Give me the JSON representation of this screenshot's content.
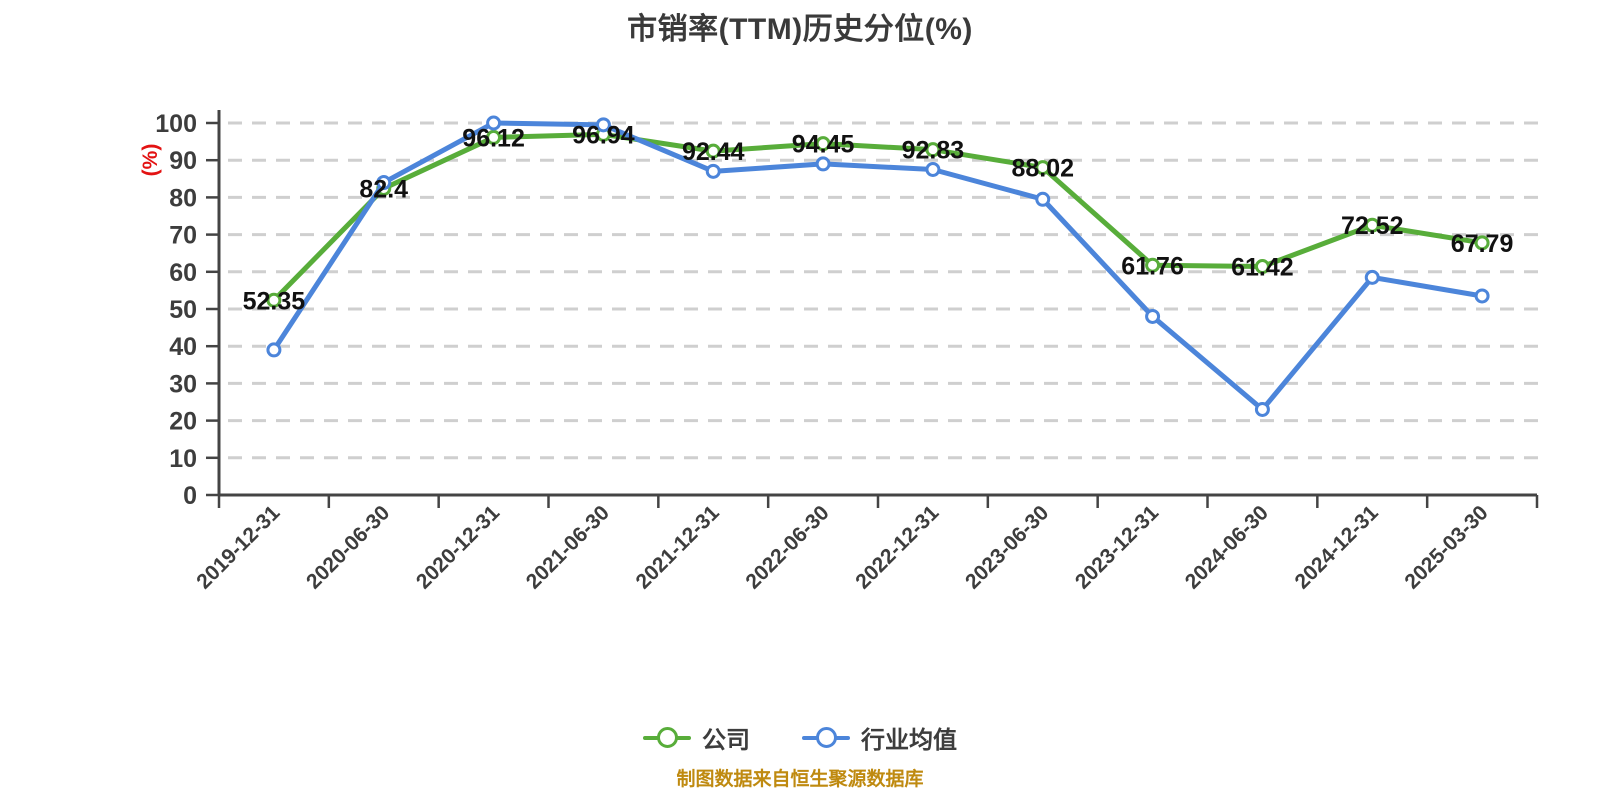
{
  "title": "市销率(TTM)历史分位(%)",
  "footer": "制图数据来自恒生聚源数据库",
  "colors": {
    "company_series": "#58ad3a",
    "industry_series": "#4c85da",
    "axis_line": "#444444",
    "grid_line": "#cfcfcf",
    "tick_text": "#3d3d3d",
    "title_text": "#3a3a3a",
    "data_label_text": "#111111",
    "y_axis_name_text": "#e31212",
    "footer_text": "#bf8a10",
    "marker_fill": "#ffffff"
  },
  "chart_data": {
    "type": "line",
    "title": "市销率(TTM)历史分位(%)",
    "xlabel": "",
    "ylabel": "(%)",
    "ylim": [
      0,
      100
    ],
    "ytick_interval": 10,
    "grid": "horizontal dashed",
    "legend_position": "bottom",
    "categories": [
      "2019-12-31",
      "2020-06-30",
      "2020-12-31",
      "2021-06-30",
      "2021-12-31",
      "2022-06-30",
      "2022-12-31",
      "2023-06-30",
      "2023-12-31",
      "2024-06-30",
      "2024-12-31",
      "2025-03-30"
    ],
    "series": [
      {
        "name": "公司",
        "key": "company",
        "color": "#58ad3a",
        "show_labels": true,
        "values": [
          52.35,
          82.4,
          96.12,
          96.94,
          92.44,
          94.45,
          92.83,
          88.02,
          61.76,
          61.42,
          72.52,
          67.79
        ],
        "labels": [
          "52.35",
          "82.4",
          "96.12",
          "96.94",
          "92.44",
          "94.45",
          "92.83",
          "88.02",
          "61.76",
          "61.42",
          "72.52",
          "67.79"
        ]
      },
      {
        "name": "行业均值",
        "key": "industry-average",
        "color": "#4c85da",
        "show_labels": false,
        "values": [
          39,
          84,
          100,
          99.5,
          87,
          89,
          87.5,
          79.5,
          48,
          23,
          58.5,
          53.5
        ]
      }
    ]
  }
}
